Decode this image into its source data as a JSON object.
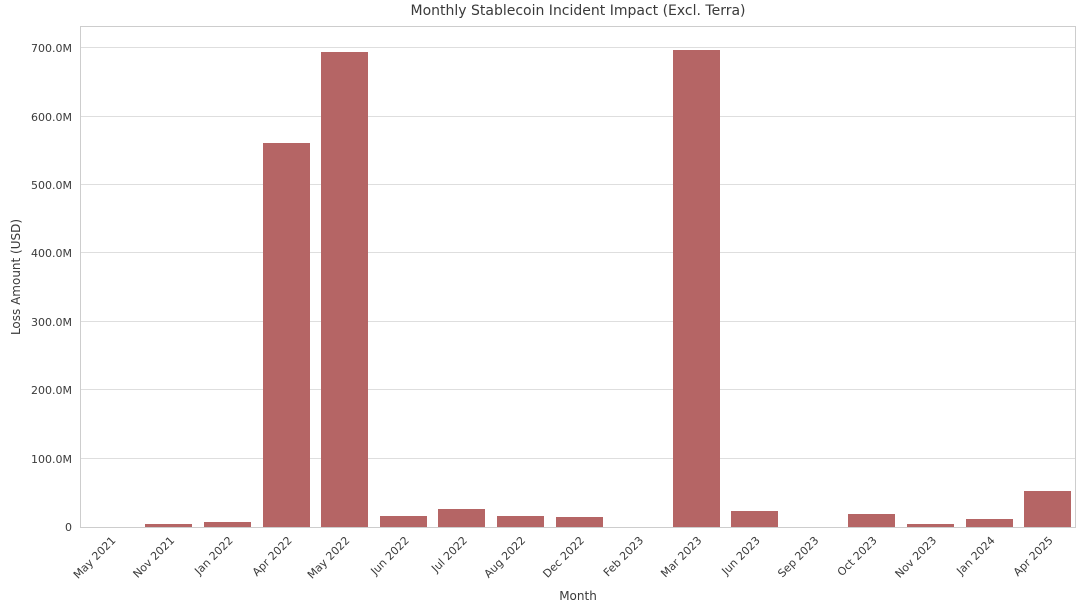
{
  "chart_data": {
    "type": "bar",
    "title": "Monthly Stablecoin Incident Impact (Excl. Terra)",
    "xlabel": "Month",
    "ylabel": "Loss Amount (USD)",
    "categories": [
      "May 2021",
      "Nov 2021",
      "Jan 2022",
      "Apr 2022",
      "May 2022",
      "Jun 2022",
      "Jul 2022",
      "Aug 2022",
      "Dec 2022",
      "Feb 2023",
      "Mar 2023",
      "Jun 2023",
      "Sep 2023",
      "Oct 2023",
      "Nov 2023",
      "Jan 2024",
      "Apr 2025"
    ],
    "values": [
      0.3,
      5,
      8,
      562,
      695,
      16,
      26,
      16,
      14,
      0.3,
      697,
      24,
      0.3,
      19,
      5,
      11,
      52
    ],
    "values_unit": "USD millions (estimated from axis)",
    "ylim": [
      0,
      734
    ],
    "yticks": [
      {
        "value": 0,
        "label": "0"
      },
      {
        "value": 100,
        "label": "100.0M"
      },
      {
        "value": 200,
        "label": "200.0M"
      },
      {
        "value": 300,
        "label": "300.0M"
      },
      {
        "value": 400,
        "label": "400.0M"
      },
      {
        "value": 500,
        "label": "500.0M"
      },
      {
        "value": 600,
        "label": "600.0M"
      },
      {
        "value": 700,
        "label": "700.0M"
      }
    ],
    "grid": "horizontal",
    "legend": "none",
    "bar_color": "#b56565"
  },
  "colors": {
    "background": "#ffffff",
    "bar": "#b56565",
    "gridline": "#dedede",
    "spine": "#cdcdcd",
    "text": "#3a3a3a"
  }
}
